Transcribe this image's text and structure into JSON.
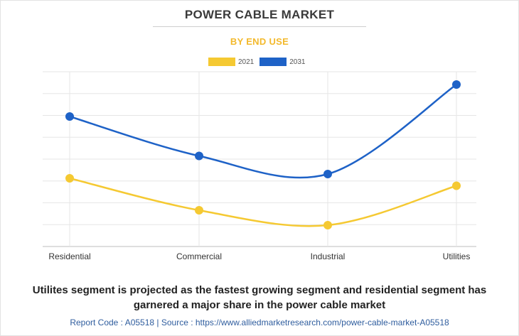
{
  "header": {
    "title": "POWER CABLE MARKET",
    "subtitle": "BY END USE"
  },
  "chart_data": {
    "type": "line",
    "categories": [
      "Residential",
      "Commercial",
      "Industrial",
      "Utilities"
    ],
    "series": [
      {
        "name": "2021",
        "values": [
          28,
          13,
          6,
          24.5
        ],
        "color": "#f5c932"
      },
      {
        "name": "2031",
        "values": [
          57,
          38.5,
          30,
          72
        ],
        "color": "#1e62c7"
      }
    ],
    "ylim": [
      -4,
      78
    ],
    "grid": true,
    "legend_position": "top-center",
    "smooth": true
  },
  "caption": {
    "line1": "Utilites segment is projected as the fastest growing segment and residential segment has",
    "line2": "garnered a major share in the power cable market"
  },
  "footer": {
    "text": "Report Code : A05518  |  Source : https://www.alliedmarketresearch.com/power-cable-market-A05518"
  }
}
